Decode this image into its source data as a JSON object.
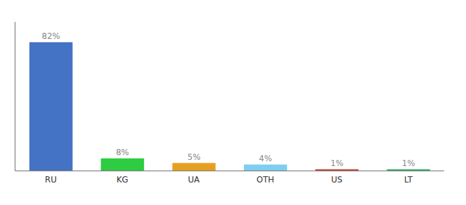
{
  "chart_data": {
    "type": "bar",
    "categories": [
      "RU",
      "KG",
      "UA",
      "OTH",
      "US",
      "LT"
    ],
    "values": [
      82,
      8,
      5,
      4,
      1,
      1
    ],
    "value_labels": [
      "82%",
      "8%",
      "5%",
      "4%",
      "1%",
      "1%"
    ],
    "colors": [
      "#4472c4",
      "#2ecc40",
      "#e6a020",
      "#7ecfef",
      "#c0392b",
      "#27ae60"
    ],
    "ylim": [
      0,
      95
    ],
    "grid": false,
    "data_labels": true,
    "tick_labels": "x"
  }
}
